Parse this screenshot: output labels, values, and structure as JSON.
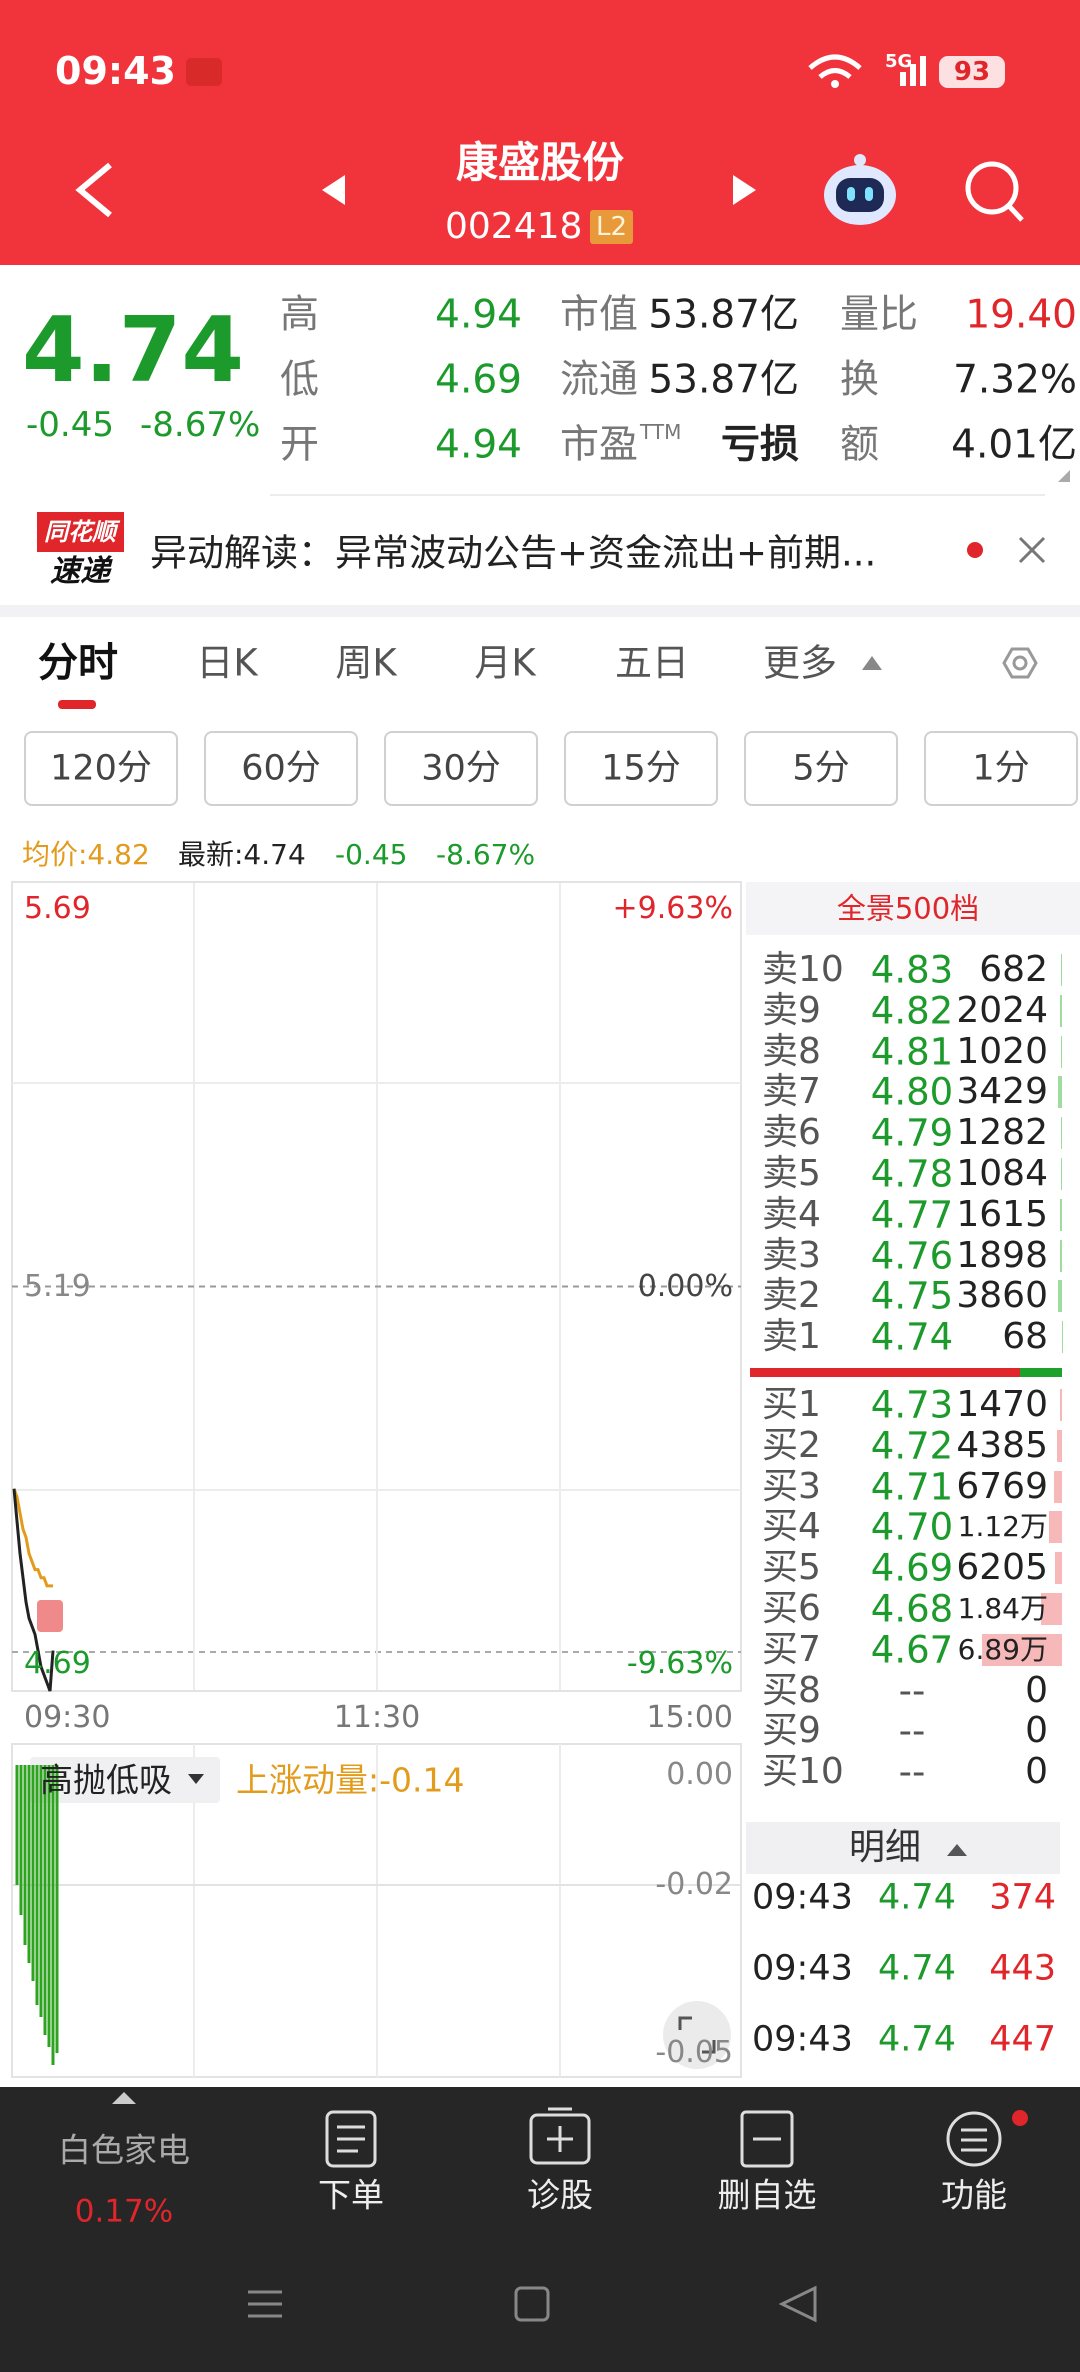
{
  "status_bar": {
    "time": "09:43",
    "network": "5G",
    "battery": "93"
  },
  "header": {
    "title": "康盛股份",
    "code": "002418",
    "badge": "L2"
  },
  "quote": {
    "price": "4.74",
    "change": "-0.45",
    "change_pct": "-8.67%",
    "rows": [
      [
        "高",
        "4.94",
        "市值",
        "53.87亿",
        "量比",
        "19.40"
      ],
      [
        "低",
        "4.69",
        "流通",
        "53.87亿",
        "换",
        "7.32%"
      ],
      [
        "开",
        "4.94",
        "市盈",
        "亏损",
        "额",
        "4.01亿"
      ]
    ],
    "pe_suffix": "TTM"
  },
  "news": {
    "badge_top": "同花顺",
    "badge_bottom": "速递",
    "text": "异动解读：异常波动公告+资金流出+前期..."
  },
  "tabs": [
    "分时",
    "日K",
    "周K",
    "月K",
    "五日",
    "更多"
  ],
  "periods": [
    "120分",
    "60分",
    "30分",
    "15分",
    "5分",
    "1分"
  ],
  "info_row": {
    "avg": "均价:4.82",
    "latest": "最新:4.74",
    "change": "-0.45",
    "change_pct": "-8.67%"
  },
  "intraday": {
    "ylim": [
      4.69,
      5.69
    ],
    "yticks": [
      5.69,
      5.19,
      4.69
    ],
    "pct_labels": [
      "+9.63%",
      "0.00%",
      "-9.63%"
    ],
    "x_labels": [
      "09:30",
      "11:30",
      "15:00"
    ],
    "price": [
      4.94,
      4.9,
      4.86,
      4.83,
      4.8,
      4.78,
      4.77,
      4.76,
      4.74,
      4.72,
      4.71,
      4.7,
      4.69,
      4.74
    ],
    "avg_price": [
      4.94,
      4.93,
      4.91,
      4.89,
      4.88,
      4.86,
      4.85,
      4.84,
      4.84,
      4.83,
      4.83,
      4.82,
      4.82,
      4.82
    ]
  },
  "indicator": {
    "name": "高抛低吸",
    "label": "上涨动量:-0.14",
    "ylim": [
      -0.05,
      0
    ],
    "yticks": [
      {
        "value": 0,
        "label": "0.00"
      },
      -0.02,
      -0.05
    ],
    "values": [
      -0.02,
      -0.025,
      -0.03,
      -0.033,
      -0.036,
      -0.04,
      -0.042,
      -0.045,
      -0.047,
      -0.05,
      -0.048
    ]
  },
  "order_book": {
    "header": "全景500档",
    "asks": [
      {
        "label": "卖10",
        "price": "4.83",
        "volume": 682
      },
      {
        "label": "卖9",
        "price": "4.82",
        "volume": 2024
      },
      {
        "label": "卖8",
        "price": "4.81",
        "volume": 1020
      },
      {
        "label": "卖7",
        "price": "4.80",
        "volume": 3429
      },
      {
        "label": "卖6",
        "price": "4.79",
        "volume": 1282
      },
      {
        "label": "卖5",
        "price": "4.78",
        "volume": 1084
      },
      {
        "label": "卖4",
        "price": "4.77",
        "volume": 1615
      },
      {
        "label": "卖3",
        "price": "4.76",
        "volume": 1898
      },
      {
        "label": "卖2",
        "price": "4.75",
        "volume": 3860
      },
      {
        "label": "卖1",
        "price": "4.74",
        "volume": 68
      }
    ],
    "bids": [
      {
        "label": "买1",
        "price": "4.73",
        "volume": 1470
      },
      {
        "label": "买2",
        "price": "4.72",
        "volume": 4385
      },
      {
        "label": "买3",
        "price": "4.71",
        "volume": 6769
      },
      {
        "label": "买4",
        "price": "4.70",
        "volume": {
          "value": 11200,
          "label": "1.12万"
        }
      },
      {
        "label": "买5",
        "price": "4.69",
        "volume": 6205
      },
      {
        "label": "买6",
        "price": "4.68",
        "volume": {
          "value": 18400,
          "label": "1.84万"
        }
      },
      {
        "label": "买7",
        "price": "4.67",
        "volume": {
          "value": 68900,
          "label": "6.89万"
        }
      },
      {
        "label": "买8",
        "price": "--",
        "volume": 0
      },
      {
        "label": "买9",
        "price": "--",
        "volume": 0
      },
      {
        "label": "买10",
        "price": "--",
        "volume": 0
      }
    ]
  },
  "trades": {
    "header": "明细",
    "rows": [
      [
        "09:43",
        "4.74",
        "374"
      ],
      [
        "09:43",
        "4.74",
        "443"
      ],
      [
        "09:43",
        "4.74",
        "447"
      ]
    ]
  },
  "bottom_nav": {
    "sector": "白色家电",
    "sector_change": "0.17%",
    "items": [
      "下单",
      "诊股",
      "删自选",
      "功能"
    ]
  }
}
